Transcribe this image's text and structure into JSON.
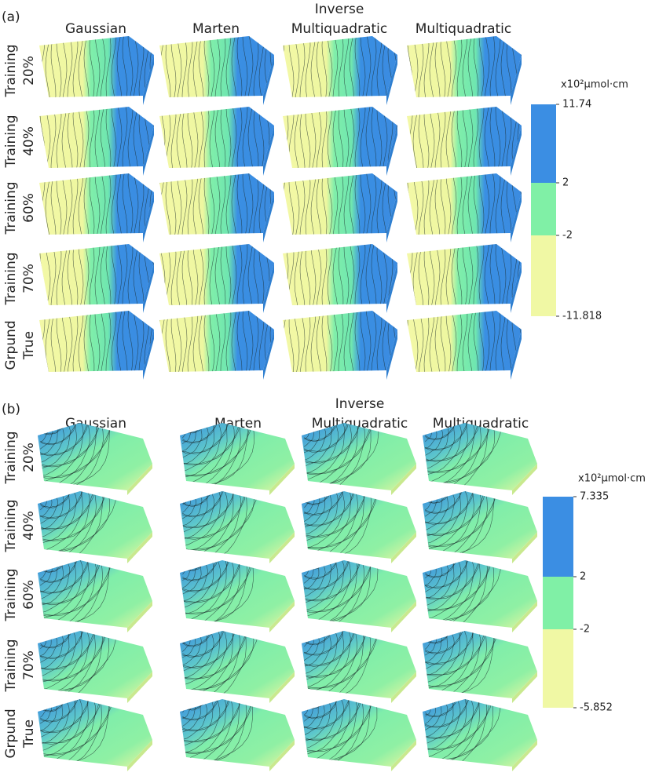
{
  "panels": [
    {
      "label": "(a)",
      "columns": [
        [
          "Gaussian"
        ],
        [
          "Marten"
        ],
        [
          "Inverse",
          "Multiquadratic"
        ],
        [
          "Multiquadratic"
        ]
      ],
      "rows": [
        [
          "Training",
          "20%"
        ],
        [
          "Training",
          "40%"
        ],
        [
          "Training",
          "60%"
        ],
        [
          "Training",
          "70%"
        ],
        [
          "Grpund",
          "True"
        ]
      ],
      "colorbar": {
        "unit": "x10²μmol·cm",
        "ticks": [
          "11.74",
          "2",
          "-2",
          "-11.818"
        ]
      }
    },
    {
      "label": "(b)",
      "columns": [
        [
          "Gaussian"
        ],
        [
          "Marten"
        ],
        [
          "Inverse",
          "Multiquadratic"
        ],
        [
          "Multiquadratic"
        ]
      ],
      "rows": [
        [
          "Training",
          "20%"
        ],
        [
          "Training",
          "40%"
        ],
        [
          "Training",
          "60%"
        ],
        [
          "Training",
          "70%"
        ],
        [
          "Grpund",
          "True"
        ]
      ],
      "colorbar": {
        "unit": "x10²μmol·cm",
        "ticks": [
          "7.335",
          "2",
          "-2",
          "-5.852"
        ]
      }
    }
  ]
}
